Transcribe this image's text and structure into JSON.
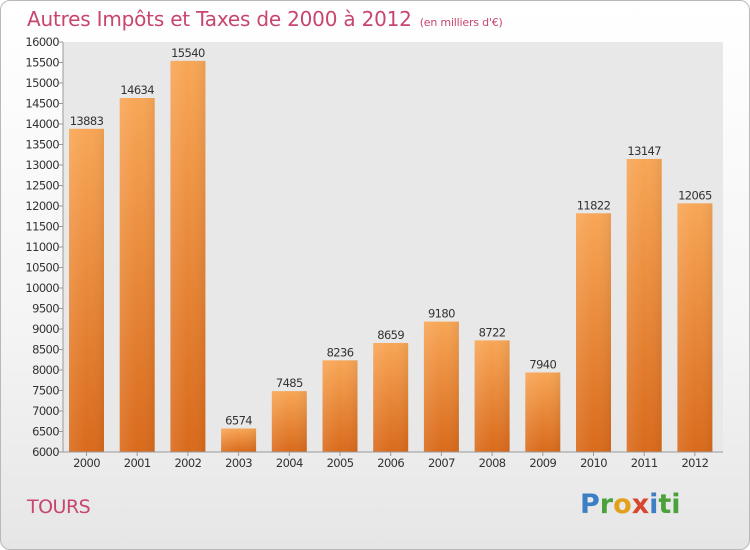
{
  "header": {
    "title": "Autres Impôts et Taxes de 2000 à 2012",
    "unit_note": "(en milliers d'€)"
  },
  "footer": {
    "city": "TOURS",
    "logo_parts": [
      "P",
      "r",
      "o",
      "x",
      "i",
      "ti"
    ]
  },
  "colors": {
    "bar_light": "#f8a656",
    "bar_dark": "#d96a1b",
    "title": "#c8456d",
    "plot_bg": "#e8e8e8"
  },
  "chart_data": {
    "type": "bar",
    "title": "Autres Impôts et Taxes de 2000 à 2012",
    "categories": [
      "2000",
      "2001",
      "2002",
      "2003",
      "2004",
      "2005",
      "2006",
      "2007",
      "2008",
      "2009",
      "2010",
      "2011",
      "2012"
    ],
    "values": [
      13883,
      14634,
      15540,
      6574,
      7485,
      8236,
      8659,
      9180,
      8722,
      7940,
      11822,
      13147,
      12065
    ],
    "xlabel": "",
    "ylabel": "",
    "ylim": [
      6000,
      16000
    ],
    "y_ticks": [
      6000,
      6500,
      7000,
      7500,
      8000,
      8500,
      9000,
      9500,
      10000,
      10500,
      11000,
      11500,
      12000,
      12500,
      13000,
      13500,
      14000,
      14500,
      15000,
      15500,
      16000
    ],
    "grid": false,
    "legend": "none"
  }
}
